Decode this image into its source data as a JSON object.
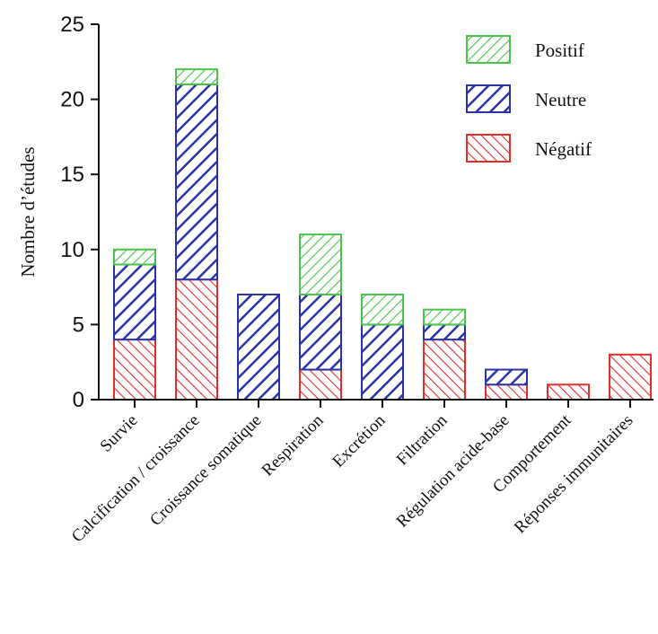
{
  "chart_data": {
    "type": "bar",
    "stacked": true,
    "ylabel": "Nombre d’études",
    "xlabel": "",
    "ylim": [
      0,
      25
    ],
    "yticks": [
      0,
      5,
      10,
      15,
      20,
      25
    ],
    "categories": [
      "Survie",
      "Calcification / croissance",
      "Croissance somatique",
      "Respiration",
      "Excrétion",
      "Filtration",
      "Régulation acide-base",
      "Comportement",
      "Réponses immunitaires"
    ],
    "series": [
      {
        "name": "Négatif",
        "color": "#e0302a",
        "values": [
          4,
          8,
          0,
          2,
          0,
          4,
          1,
          1,
          3
        ]
      },
      {
        "name": "Neutre",
        "color": "#2a33a8",
        "values": [
          5,
          13,
          7,
          5,
          5,
          1,
          1,
          0,
          0
        ]
      },
      {
        "name": "Positif",
        "color": "#4cc44a",
        "values": [
          1,
          1,
          0,
          4,
          2,
          1,
          0,
          0,
          0
        ]
      }
    ],
    "legend": {
      "position": "top-right",
      "order": [
        "Positif",
        "Neutre",
        "Négatif"
      ]
    }
  }
}
